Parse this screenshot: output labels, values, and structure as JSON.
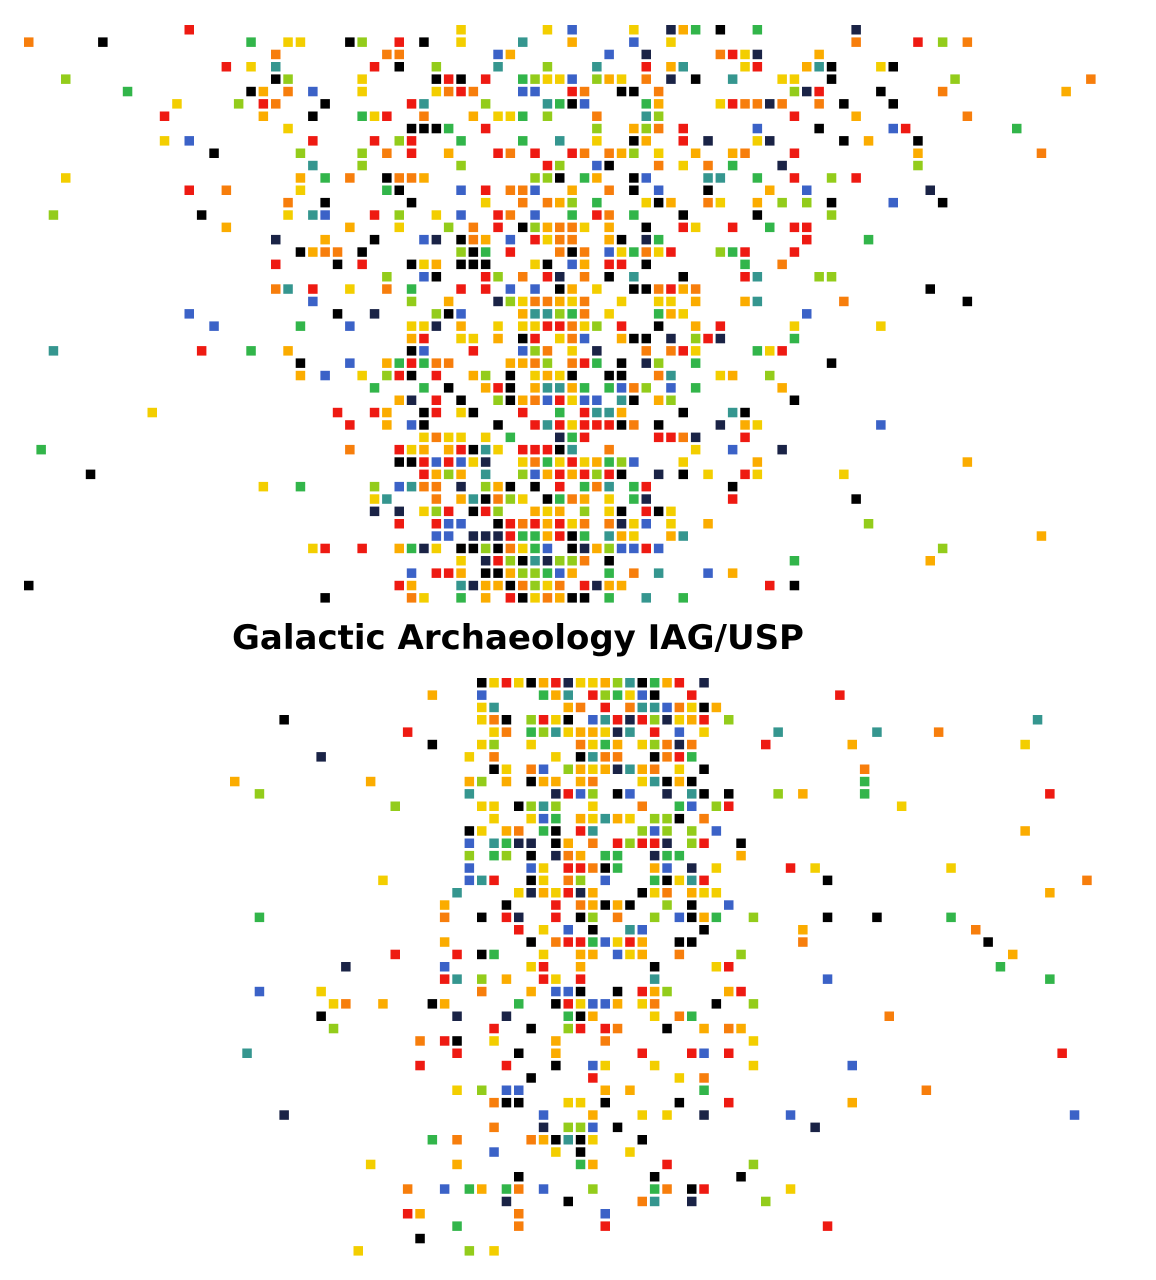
{
  "title": "Galactic Archaeology IAG/USP",
  "palette": {
    "black": "#000000",
    "navy": "#1a2346",
    "blue": "#3b62c7",
    "teal": "#35968f",
    "green": "#32b54a",
    "lime": "#93cc1b",
    "yellow": "#f3ce00",
    "amber": "#fbac00",
    "orange": "#f77e0c",
    "red": "#ee1a12"
  },
  "clusters": [
    {
      "name": "upper-cluster",
      "shape": "fan",
      "density": "dense-core"
    },
    {
      "name": "lower-cluster",
      "shape": "fan",
      "density": "sparse-tail"
    }
  ]
}
